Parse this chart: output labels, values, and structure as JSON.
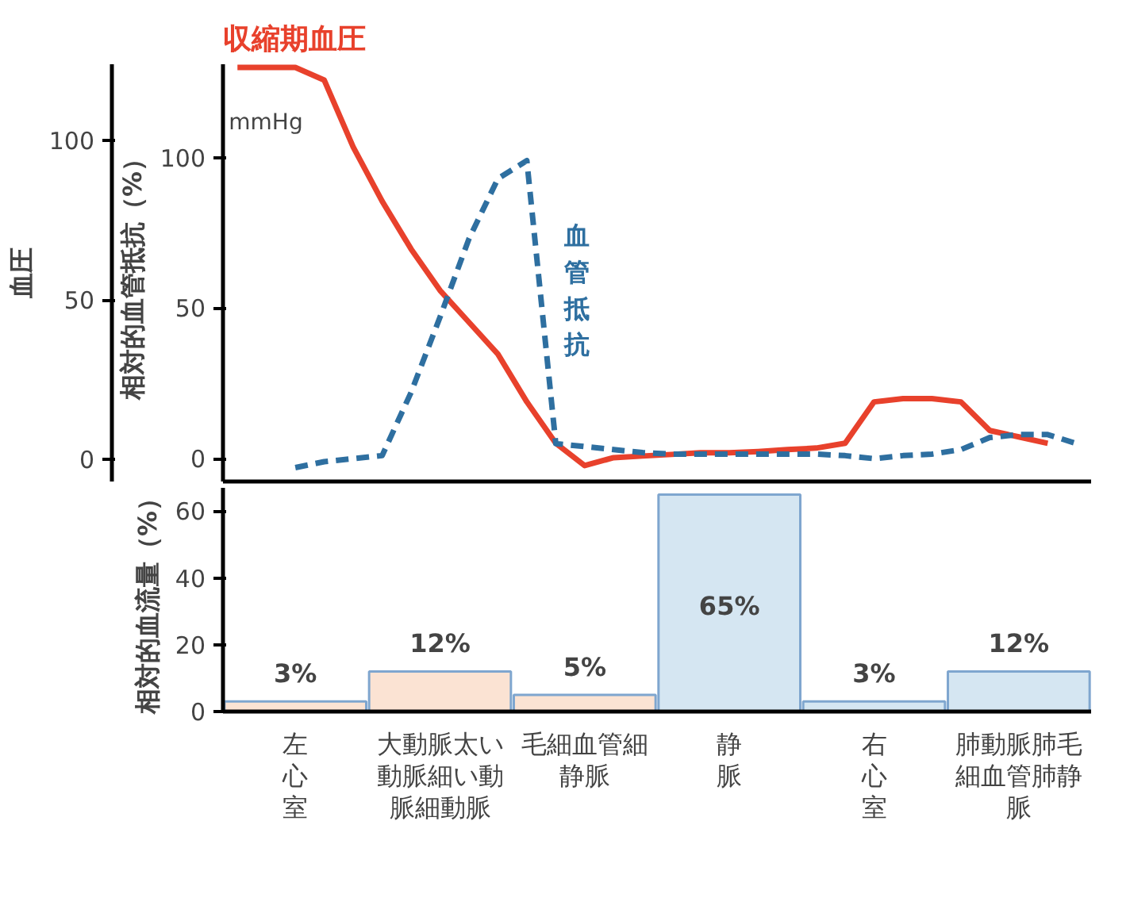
{
  "chart_data": [
    {
      "type": "line",
      "categories": [
        null,
        null,
        null,
        null,
        null,
        null,
        null,
        null,
        null,
        null,
        null,
        null,
        null,
        null,
        null,
        null,
        null,
        null,
        null,
        null,
        null,
        null,
        null,
        null,
        null,
        null,
        null,
        null,
        null,
        null
      ],
      "ylabel": "相対的血管抵抗（%）",
      "y2label": "血圧",
      "annotations": [
        "mmHg"
      ],
      "ylim": [
        -7.6,
        131
      ],
      "yticks": [
        0,
        50,
        100
      ],
      "y2lim": [
        -7,
        124
      ],
      "y2ticks": [
        0,
        50,
        100
      ],
      "tick_labels": "y",
      "grid": false,
      "legend": false,
      "marker": "none",
      "series": [
        {
          "name": "収縮期血圧",
          "color": "#e8412c",
          "line_style": "solid",
          "axis": "y2",
          "values": [
            123,
            123,
            123,
            119,
            98,
            81,
            66,
            53,
            43,
            33,
            18,
            5,
            -2,
            0.5,
            1,
            1.5,
            2,
            2,
            2.4,
            3,
            3.5,
            5,
            18,
            19,
            19,
            18,
            9,
            7,
            5,
            null
          ]
        },
        {
          "name": "血管抵抗",
          "color": "#2e6fa0",
          "line_style": "dashed",
          "values": [
            null,
            null,
            -3,
            -1,
            0,
            1,
            22,
            47,
            73,
            93,
            99,
            5,
            4,
            3,
            2,
            1.5,
            1.5,
            1.5,
            1.5,
            1.5,
            1.5,
            1,
            0,
            1,
            1.5,
            3,
            7,
            8,
            8,
            5
          ]
        }
      ]
    },
    {
      "type": "bar",
      "categories": [
        "左心室",
        "大動脈太い動脈細い動脈細動脈",
        "毛細血管細静脈",
        "静脈",
        "右心室",
        "肺動脈肺毛細血管肺静脈"
      ],
      "ylabel": "相対的血流量（%）",
      "ylim": [
        0,
        67
      ],
      "yticks": [
        0,
        20,
        40,
        60
      ],
      "grid": false,
      "values": [
        3,
        12,
        5,
        65,
        3,
        12
      ],
      "value_labels": [
        "3%",
        "12%",
        "5%",
        "65%",
        "3%",
        "12%"
      ],
      "colors": [
        "#fbe3d3",
        "#fbe3d3",
        "#fbe3d3",
        "#d5e6f2",
        "#d5e6f2",
        "#d5e6f2"
      ]
    }
  ]
}
